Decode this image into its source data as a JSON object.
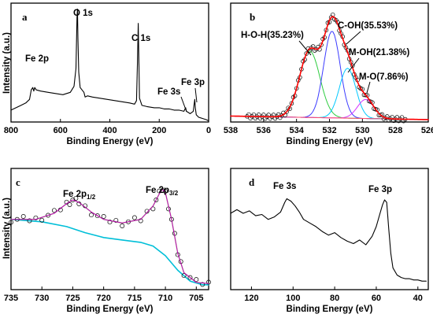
{
  "chart_data": [
    {
      "panel": "a",
      "type": "line",
      "xlabel": "Binding Energy (eV)",
      "ylabel": "Intensity (a.u.)",
      "xlim": [
        800,
        0
      ],
      "xticks": [
        800,
        600,
        400,
        200,
        0
      ],
      "ylim": [
        0,
        1
      ],
      "annotations": [
        {
          "text": "O 1s",
          "x": 531
        },
        {
          "text": "C 1s",
          "x": 285
        },
        {
          "text": "Fe 2p",
          "x": 711
        },
        {
          "text": "Fe 3s",
          "x": 93
        },
        {
          "text": "Fe 3p",
          "x": 56
        }
      ],
      "series": [
        {
          "color": "#000000",
          "x": [
            800,
            780,
            760,
            740,
            725,
            718,
            712,
            708,
            704,
            698,
            680,
            650,
            620,
            590,
            560,
            545,
            537,
            533,
            531,
            529,
            526,
            520,
            505,
            500,
            490,
            470,
            440,
            410,
            380,
            350,
            320,
            300,
            292,
            288,
            285,
            283,
            280,
            270,
            250,
            220,
            200,
            180,
            160,
            140,
            120,
            100,
            93,
            90,
            75,
            62,
            58,
            56,
            54,
            50,
            40,
            25,
            10,
            0
          ],
          "y": [
            0.1,
            0.12,
            0.14,
            0.16,
            0.19,
            0.27,
            0.29,
            0.26,
            0.29,
            0.27,
            0.26,
            0.25,
            0.24,
            0.23,
            0.25,
            0.3,
            0.45,
            0.88,
            0.95,
            0.7,
            0.42,
            0.29,
            0.25,
            0.21,
            0.22,
            0.21,
            0.2,
            0.19,
            0.18,
            0.17,
            0.16,
            0.15,
            0.18,
            0.5,
            0.83,
            0.6,
            0.2,
            0.14,
            0.13,
            0.12,
            0.12,
            0.11,
            0.11,
            0.1,
            0.1,
            0.09,
            0.12,
            0.09,
            0.07,
            0.09,
            0.16,
            0.19,
            0.12,
            0.06,
            0.04,
            0.03,
            0.02,
            0.01
          ]
        }
      ]
    },
    {
      "panel": "b",
      "type": "line",
      "xlabel": "Binding Energy (eV)",
      "ylabel": "",
      "xlim": [
        538,
        526
      ],
      "xticks": [
        538,
        536,
        534,
        532,
        530,
        528,
        526
      ],
      "ylim": [
        0,
        1
      ],
      "annotations": [
        {
          "text": "H-O-H(35.23%)",
          "x": 533.2
        },
        {
          "text": "C-OH(35.53%)",
          "x": 531.8
        },
        {
          "text": "M-OH(21.38%)",
          "x": 530.9
        },
        {
          "text": "M-O(7.86%)",
          "x": 529.8
        }
      ],
      "components": [
        {
          "color": "#2ecc40",
          "center": 533.2,
          "sigma": 0.62,
          "amp": 0.56
        },
        {
          "color": "#3b3bff",
          "center": 531.85,
          "sigma": 0.5,
          "amp": 0.73
        },
        {
          "color": "#00c8ff",
          "center": 530.9,
          "sigma": 0.5,
          "amp": 0.42
        },
        {
          "color": "#d633ff",
          "center": 529.8,
          "sigma": 0.5,
          "amp": 0.16
        }
      ],
      "baseline": {
        "color": "#ff4d6a",
        "y_left": 0.05,
        "y_right": 0.02
      },
      "envelope_color": "#ff0000"
    },
    {
      "panel": "c",
      "type": "line",
      "xlabel": "Binding Energy (eV)",
      "ylabel": "Intensity (a.u.)",
      "xlim": [
        735,
        703
      ],
      "xticks": [
        735,
        730,
        725,
        720,
        715,
        710,
        705
      ],
      "ylim": [
        0,
        1
      ],
      "annotations": [
        {
          "text": "Fe 2p1/2",
          "x": 724.5
        },
        {
          "text": "Fe 2p3/2",
          "x": 710.6
        }
      ],
      "background": {
        "color": "#00bfd8",
        "x": [
          735,
          730,
          726,
          723,
          720,
          717,
          714,
          712,
          710,
          708,
          706,
          704,
          703
        ],
        "y": [
          0.58,
          0.56,
          0.52,
          0.47,
          0.43,
          0.41,
          0.39,
          0.36,
          0.28,
          0.16,
          0.07,
          0.04,
          0.04
        ]
      },
      "fit": {
        "color": "#2a7fff",
        "x": [
          735,
          731,
          728,
          726,
          725,
          724,
          722,
          720,
          717,
          714,
          712,
          711,
          710.5,
          710,
          709,
          708,
          707,
          705,
          703
        ],
        "y": [
          0.58,
          0.58,
          0.63,
          0.71,
          0.74,
          0.72,
          0.64,
          0.58,
          0.55,
          0.58,
          0.69,
          0.79,
          0.83,
          0.8,
          0.58,
          0.3,
          0.14,
          0.06,
          0.05
        ]
      },
      "markers_x": [
        735,
        734,
        733,
        732,
        731,
        730,
        729,
        728,
        727,
        726,
        725.5,
        725,
        724.5,
        724,
        723,
        722,
        721,
        720,
        719,
        718,
        717,
        716,
        715,
        714,
        713,
        712,
        711.5,
        711,
        710.5,
        710,
        709.5,
        709,
        708.5,
        708,
        707.5,
        707,
        706,
        705,
        704,
        703
      ]
    },
    {
      "panel": "d",
      "type": "line",
      "xlabel": "Binding Energy (eV)",
      "ylabel": "",
      "xlim": [
        130,
        35
      ],
      "xticks": [
        120,
        100,
        80,
        60,
        40
      ],
      "ylim": [
        0,
        1
      ],
      "annotations": [
        {
          "text": "Fe 3s",
          "x": 103
        },
        {
          "text": "Fe 3p",
          "x": 56
        }
      ],
      "series": [
        {
          "color": "#000000",
          "x": [
            130,
            127,
            124,
            121,
            118,
            115,
            112,
            109,
            106,
            104,
            103,
            101,
            99,
            97,
            95,
            92,
            89,
            86,
            83,
            80,
            77,
            74,
            71,
            68,
            65,
            62,
            60,
            58,
            57,
            56,
            55,
            54,
            53,
            52,
            50,
            48,
            46,
            44,
            42,
            40,
            38,
            36
          ],
          "y": [
            0.63,
            0.66,
            0.63,
            0.65,
            0.61,
            0.62,
            0.58,
            0.6,
            0.64,
            0.72,
            0.75,
            0.73,
            0.69,
            0.64,
            0.58,
            0.55,
            0.52,
            0.48,
            0.45,
            0.47,
            0.43,
            0.4,
            0.38,
            0.41,
            0.37,
            0.44,
            0.52,
            0.64,
            0.7,
            0.74,
            0.72,
            0.5,
            0.3,
            0.18,
            0.12,
            0.1,
            0.09,
            0.09,
            0.08,
            0.08,
            0.07,
            0.07
          ]
        }
      ]
    }
  ]
}
